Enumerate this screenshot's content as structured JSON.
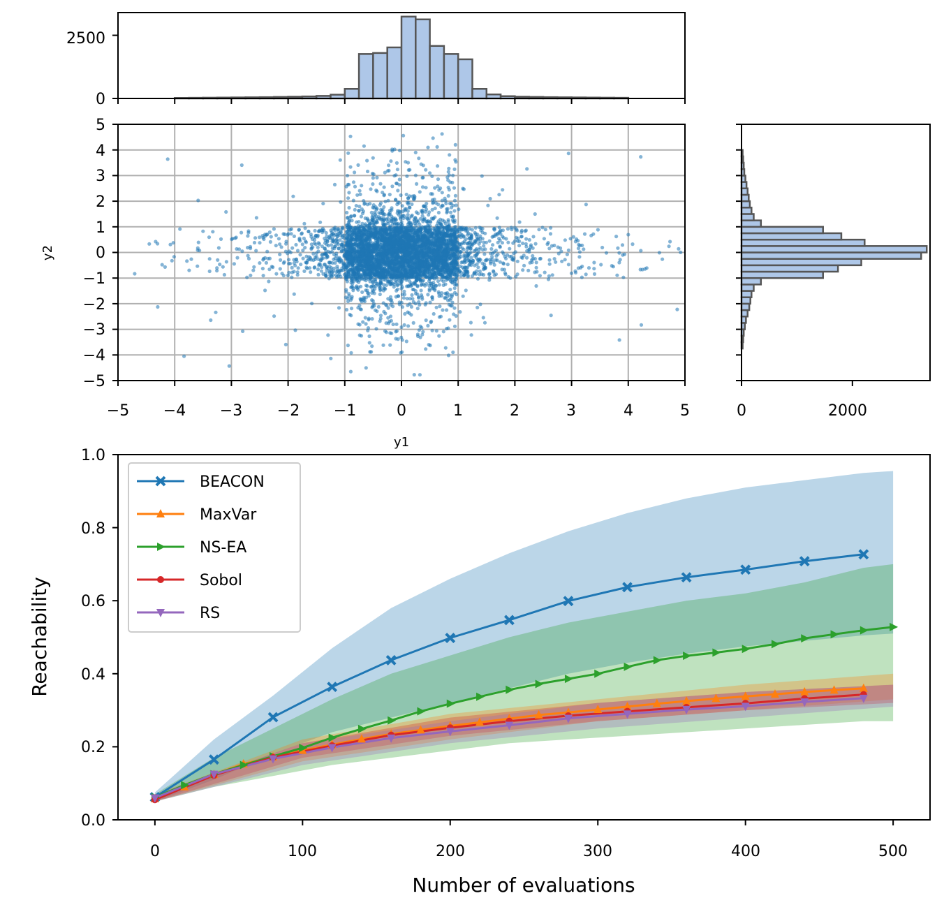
{
  "top_histogram": {
    "axis_name": "y1",
    "y_ticks": [
      "0",
      "2500"
    ],
    "y_tick_values": [
      0,
      2500
    ],
    "ylim": [
      0,
      3400
    ],
    "bins_from": -5,
    "bin_width": 0.25,
    "counts": [
      0,
      0,
      0,
      0,
      20,
      25,
      30,
      35,
      40,
      45,
      50,
      60,
      70,
      80,
      100,
      150,
      380,
      1760,
      1800,
      2020,
      3240,
      3130,
      2080,
      1760,
      1550,
      380,
      160,
      90,
      70,
      60,
      50,
      45,
      40,
      35,
      30,
      25,
      0,
      0,
      0,
      0
    ]
  },
  "scatter": {
    "xlabel": "y1",
    "ylabel": "y2",
    "xlim": [
      -5,
      5
    ],
    "ylim": [
      -5,
      5
    ],
    "x_ticks": [
      "−5",
      "−4",
      "−3",
      "−2",
      "−1",
      "0",
      "1",
      "2",
      "3",
      "4",
      "5"
    ],
    "x_tick_values": [
      -5,
      -4,
      -3,
      -2,
      -1,
      0,
      1,
      2,
      3,
      4,
      5
    ],
    "y_ticks": [
      "−5",
      "−4",
      "−3",
      "−2",
      "−1",
      "0",
      "1",
      "2",
      "3",
      "4",
      "5"
    ],
    "y_tick_values": [
      -5,
      -4,
      -3,
      -2,
      -1,
      0,
      1,
      2,
      3,
      4,
      5
    ],
    "point_color": "#1f77b4"
  },
  "right_histogram": {
    "x_ticks": [
      "0",
      "2000"
    ],
    "x_tick_values": [
      0,
      2000
    ],
    "xlim": [
      0,
      3400
    ],
    "bins_from": -5,
    "bin_width": 0.25,
    "counts": [
      0,
      0,
      0,
      0,
      0,
      20,
      30,
      40,
      60,
      80,
      110,
      140,
      160,
      180,
      220,
      350,
      1470,
      1740,
      2160,
      3240,
      3340,
      2220,
      1800,
      1470,
      350,
      220,
      180,
      150,
      130,
      110,
      90,
      70,
      50,
      40,
      30,
      20,
      0,
      0,
      0,
      0
    ]
  },
  "hist_style": {
    "fill": "#aec7e8",
    "edge": "#555555"
  },
  "chart_data": {
    "type": "line",
    "xlabel": "Number of evaluations",
    "ylabel": "Reachability",
    "xlim": [
      -25,
      525
    ],
    "ylim": [
      0,
      1.0
    ],
    "x_ticks": [
      "0",
      "100",
      "200",
      "300",
      "400",
      "500"
    ],
    "x_tick_values": [
      0,
      100,
      200,
      300,
      400,
      500
    ],
    "y_ticks": [
      "0.0",
      "0.2",
      "0.4",
      "0.6",
      "0.8",
      "1.0"
    ],
    "y_tick_values": [
      0,
      0.2,
      0.4,
      0.6,
      0.8,
      1.0
    ],
    "legend_position": "upper-left",
    "series": [
      {
        "name": "BEACON",
        "color": "#1f77b4",
        "marker": "x",
        "x": [
          0,
          40,
          80,
          120,
          160,
          200,
          240,
          280,
          320,
          360,
          400,
          440,
          480
        ],
        "values": [
          0.062,
          0.165,
          0.281,
          0.364,
          0.437,
          0.498,
          0.547,
          0.599,
          0.637,
          0.664,
          0.685,
          0.708,
          0.727
        ],
        "band_x": [
          0,
          40,
          80,
          120,
          160,
          200,
          240,
          280,
          320,
          360,
          400,
          440,
          480,
          500
        ],
        "band_low": [
          0.05,
          0.11,
          0.18,
          0.24,
          0.28,
          0.32,
          0.36,
          0.4,
          0.43,
          0.455,
          0.475,
          0.49,
          0.505,
          0.51
        ],
        "band_high": [
          0.075,
          0.22,
          0.34,
          0.47,
          0.58,
          0.66,
          0.73,
          0.79,
          0.84,
          0.88,
          0.91,
          0.93,
          0.95,
          0.955
        ]
      },
      {
        "name": "MaxVar",
        "color": "#ff7f0e",
        "marker": "triangle-up",
        "x": [
          0,
          20,
          40,
          60,
          80,
          100,
          120,
          140,
          160,
          180,
          200,
          220,
          240,
          260,
          280,
          300,
          320,
          340,
          360,
          380,
          400,
          420,
          440,
          460,
          480
        ],
        "values": [
          0.058,
          0.09,
          0.124,
          0.153,
          0.172,
          0.19,
          0.206,
          0.221,
          0.235,
          0.246,
          0.257,
          0.267,
          0.277,
          0.287,
          0.294,
          0.302,
          0.31,
          0.318,
          0.325,
          0.332,
          0.338,
          0.344,
          0.35,
          0.355,
          0.36
        ],
        "band_x": [
          0,
          100,
          200,
          300,
          400,
          500
        ],
        "band_low": [
          0.05,
          0.16,
          0.22,
          0.27,
          0.3,
          0.33
        ],
        "band_high": [
          0.07,
          0.22,
          0.29,
          0.33,
          0.37,
          0.4
        ]
      },
      {
        "name": "NS-EA",
        "color": "#2ca02c",
        "marker": "triangle-right",
        "x": [
          0,
          20,
          40,
          60,
          80,
          100,
          120,
          140,
          160,
          180,
          200,
          220,
          240,
          260,
          280,
          300,
          320,
          340,
          360,
          380,
          400,
          420,
          440,
          460,
          480,
          500
        ],
        "values": [
          0.062,
          0.095,
          0.125,
          0.15,
          0.174,
          0.197,
          0.225,
          0.249,
          0.272,
          0.297,
          0.318,
          0.337,
          0.356,
          0.372,
          0.386,
          0.4,
          0.419,
          0.437,
          0.449,
          0.458,
          0.468,
          0.481,
          0.497,
          0.508,
          0.519,
          0.528
        ],
        "band_x": [
          0,
          40,
          80,
          120,
          160,
          200,
          240,
          280,
          320,
          360,
          400,
          440,
          480,
          500
        ],
        "band_low": [
          0.05,
          0.09,
          0.12,
          0.15,
          0.17,
          0.19,
          0.21,
          0.22,
          0.23,
          0.24,
          0.25,
          0.26,
          0.27,
          0.27
        ],
        "band_high": [
          0.07,
          0.17,
          0.25,
          0.33,
          0.4,
          0.45,
          0.5,
          0.54,
          0.57,
          0.6,
          0.62,
          0.65,
          0.69,
          0.7
        ]
      },
      {
        "name": "Sobol",
        "color": "#d62728",
        "marker": "circle",
        "x": [
          0,
          40,
          80,
          120,
          160,
          200,
          240,
          280,
          320,
          360,
          400,
          440,
          480
        ],
        "values": [
          0.055,
          0.122,
          0.171,
          0.203,
          0.232,
          0.252,
          0.27,
          0.285,
          0.297,
          0.308,
          0.319,
          0.332,
          0.343
        ],
        "band_x": [
          0,
          100,
          200,
          300,
          400,
          500
        ],
        "band_low": [
          0.05,
          0.17,
          0.23,
          0.27,
          0.3,
          0.32
        ],
        "band_high": [
          0.065,
          0.21,
          0.28,
          0.32,
          0.35,
          0.37
        ]
      },
      {
        "name": "RS",
        "color": "#9467bd",
        "marker": "triangle-down",
        "x": [
          0,
          40,
          80,
          120,
          160,
          200,
          240,
          280,
          320,
          360,
          400,
          440,
          480
        ],
        "values": [
          0.06,
          0.125,
          0.167,
          0.198,
          0.224,
          0.242,
          0.259,
          0.278,
          0.29,
          0.302,
          0.311,
          0.323,
          0.333
        ],
        "band_x": [
          0,
          100,
          200,
          300,
          400,
          500
        ],
        "band_low": [
          0.05,
          0.15,
          0.21,
          0.25,
          0.28,
          0.31
        ],
        "band_high": [
          0.07,
          0.21,
          0.27,
          0.32,
          0.35,
          0.37
        ]
      }
    ]
  }
}
